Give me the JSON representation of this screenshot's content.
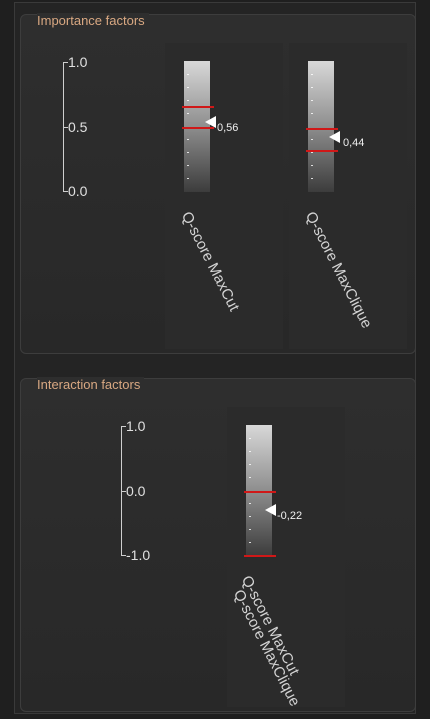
{
  "importance": {
    "title": "Importance factors",
    "axis": {
      "top": "1.0",
      "mid": "0.5",
      "bottom": "0.0"
    },
    "bars": [
      {
        "label": "Q-score MaxCut",
        "value": "0,56",
        "level": 0.56,
        "range": [
          0.5,
          0.64
        ]
      },
      {
        "label": "Q-score MaxClique",
        "value": "0,44",
        "level": 0.44,
        "range": [
          0.31,
          0.5
        ]
      }
    ]
  },
  "interaction": {
    "title": "Interaction factors",
    "axis": {
      "top": "1.0",
      "mid": "0.0",
      "bottom": "-1.0"
    },
    "bars": [
      {
        "label_1": "Q-score MaxCut",
        "label_2": "Q-score MaxClique",
        "value": "-0,22",
        "level": -0.22,
        "range": [
          -1.0,
          0.0
        ]
      }
    ]
  },
  "colors": {
    "accent_title": "#d9a882",
    "range_line": "#d01818"
  }
}
